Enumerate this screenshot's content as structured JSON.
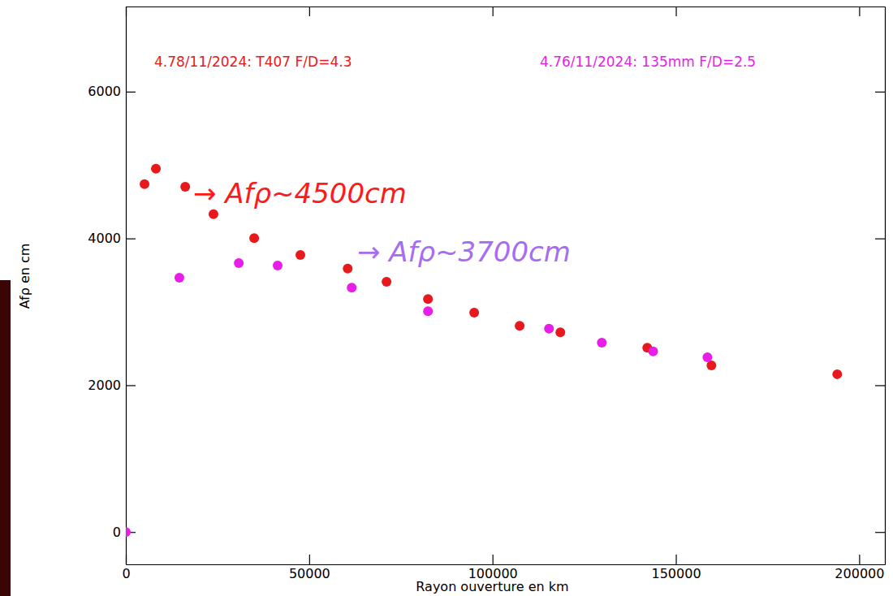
{
  "chart_data": {
    "type": "scatter",
    "x_label": "Rayon ouverture en km",
    "y_label": "Afρ en cm",
    "xlim": [
      0,
      207000
    ],
    "ylim": [
      -440,
      7160
    ],
    "xticks": [
      0,
      50000,
      100000,
      150000,
      200000
    ],
    "yticks": [
      0,
      2000,
      4000,
      6000
    ],
    "marker": "circle",
    "legend": "top",
    "series": [
      {
        "name": "4.78/11/2024: T407 F/D=4.3",
        "color": "#e8191c",
        "x": [
          5100,
          8200,
          16200,
          23900,
          35000,
          47600,
          60500,
          71100,
          82400,
          95000,
          107400,
          118500,
          142200,
          159700,
          194000
        ],
        "values": [
          4740,
          4950,
          4705,
          4330,
          4005,
          3775,
          3590,
          3410,
          3175,
          2990,
          2810,
          2720,
          2510,
          2270,
          2150
        ]
      },
      {
        "name": "4.76/11/2024: 135mm F/D=2.5",
        "color": "#e81ee8",
        "x": [
          0,
          14600,
          30800,
          41400,
          61600,
          82400,
          115400,
          129800,
          143800,
          158600
        ],
        "values": [
          0,
          3465,
          3665,
          3630,
          3330,
          3010,
          2770,
          2580,
          2460,
          2380
        ]
      }
    ],
    "annotations": [
      {
        "text": "→ Afρ~4500cm",
        "color": "#ff1a1a"
      },
      {
        "text": "→ Afρ~3700cm",
        "color": "#a66cf2"
      }
    ]
  }
}
